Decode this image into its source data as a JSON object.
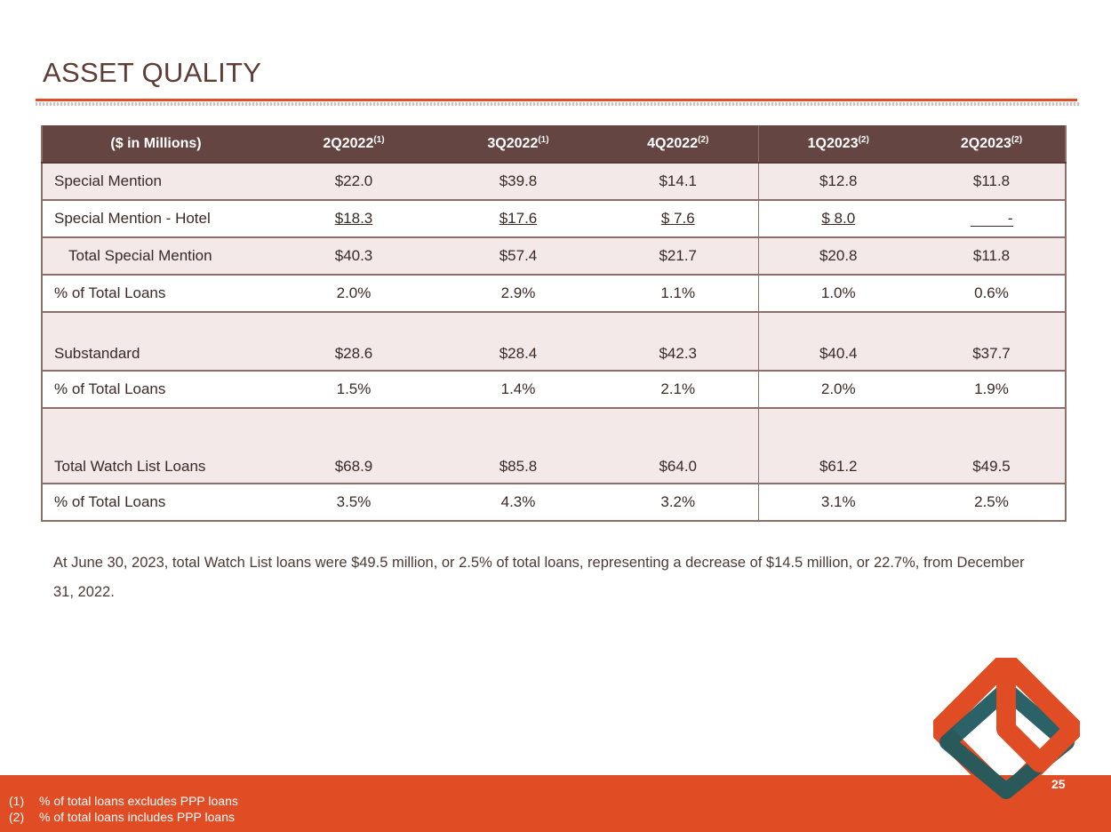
{
  "page": {
    "title": "ASSET QUALITY",
    "page_number": "25"
  },
  "table": {
    "header": {
      "label": "($ in Millions)",
      "periods": [
        {
          "name": "2Q2022",
          "note": "(1)"
        },
        {
          "name": "3Q2022",
          "note": "(1)"
        },
        {
          "name": "4Q2022",
          "note": "(2)"
        },
        {
          "name": "1Q2023",
          "note": "(2)"
        },
        {
          "name": "2Q2023",
          "note": "(2)"
        }
      ]
    },
    "rows": [
      {
        "label": "Special Mention",
        "values": [
          "$22.0",
          "$39.8",
          "$14.1",
          "$12.8",
          "$11.8"
        ]
      },
      {
        "label": "Special Mention - Hotel",
        "values": [
          "$18.3",
          "$17.6",
          "$ 7.6",
          "$ 8.0",
          "-"
        ]
      },
      {
        "label": "Total Special Mention",
        "values": [
          "$40.3",
          "$57.4",
          "$21.7",
          "$20.8",
          "$11.8"
        ]
      },
      {
        "label": "% of Total Loans",
        "values": [
          "2.0%",
          "2.9%",
          "1.1%",
          "1.0%",
          "0.6%"
        ]
      },
      {
        "label": "Substandard",
        "values": [
          "$28.6",
          "$28.4",
          "$42.3",
          "$40.4",
          "$37.7"
        ]
      },
      {
        "label": "% of Total Loans",
        "values": [
          "1.5%",
          "1.4%",
          "2.1%",
          "2.0%",
          "1.9%"
        ]
      },
      {
        "label": "Total Watch List Loans",
        "values": [
          "$68.9",
          "$85.8",
          "$64.0",
          "$61.2",
          "$49.5"
        ]
      },
      {
        "label": "% of Total Loans",
        "values": [
          "3.5%",
          "4.3%",
          "3.2%",
          "3.1%",
          "2.5%"
        ]
      }
    ]
  },
  "commentary": "At June 30, 2023, total Watch List loans were $49.5 million, or 2.5% of total loans, representing a decrease of $14.5 million, or 22.7%, from December 31, 2022.",
  "footnotes": [
    {
      "num": "(1)",
      "text": "% of total loans excludes PPP loans"
    },
    {
      "num": "(2)",
      "text": "% of total loans includes PPP loans"
    }
  ],
  "colors": {
    "brand_orange": "#e04c23",
    "brand_teal": "#1f5a5f",
    "header_brown": "#654541",
    "row_shade": "#f2e9e8"
  }
}
